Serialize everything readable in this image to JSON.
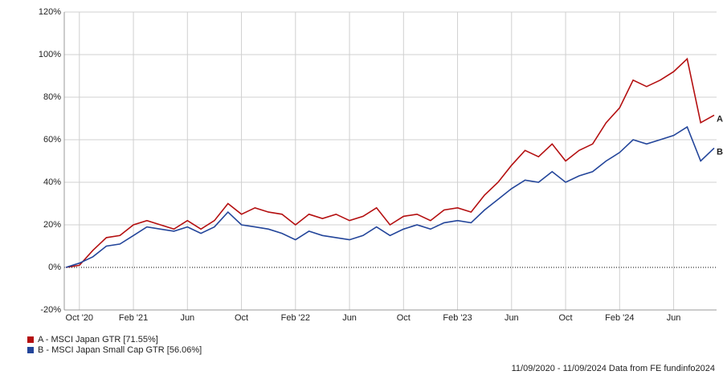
{
  "chart_data": {
    "type": "line",
    "categories": [
      null,
      "Oct '20",
      null,
      null,
      null,
      "Feb '21",
      null,
      null,
      null,
      "Jun",
      null,
      null,
      null,
      "Oct",
      null,
      null,
      null,
      "Feb '22",
      null,
      null,
      null,
      "Jun",
      null,
      null,
      null,
      "Oct",
      null,
      null,
      null,
      "Feb '23",
      null,
      null,
      null,
      "Jun",
      null,
      null,
      null,
      "Oct",
      null,
      null,
      null,
      "Feb '24",
      null,
      null,
      null,
      "Jun",
      null,
      null,
      null
    ],
    "series": [
      {
        "name": "A - MSCI Japan GTR [71.55%]",
        "label": "A",
        "color": "#b40f10",
        "values": [
          0,
          1,
          8,
          14,
          15,
          20,
          22,
          20,
          18,
          22,
          18,
          22,
          30,
          25,
          28,
          26,
          25,
          20,
          25,
          23,
          25,
          22,
          24,
          28,
          20,
          24,
          25,
          22,
          27,
          28,
          26,
          34,
          40,
          48,
          55,
          52,
          58,
          50,
          55,
          58,
          68,
          75,
          88,
          85,
          88,
          92,
          98,
          68,
          71.55
        ]
      },
      {
        "name": "B - MSCI Japan Small Cap GTR [56.06%]",
        "label": "B",
        "color": "#23459a",
        "values": [
          0,
          2,
          5,
          10,
          11,
          15,
          19,
          18,
          17,
          19,
          16,
          19,
          26,
          20,
          19,
          18,
          16,
          13,
          17,
          15,
          14,
          13,
          15,
          19,
          15,
          18,
          20,
          18,
          21,
          22,
          21,
          27,
          32,
          37,
          41,
          40,
          45,
          40,
          43,
          45,
          50,
          54,
          60,
          58,
          60,
          62,
          66,
          50,
          56.06
        ]
      }
    ],
    "ylim": [
      -20,
      120
    ],
    "yticks": [
      {
        "value": -20,
        "label": "-20%"
      },
      {
        "value": 0,
        "label": "0%"
      },
      {
        "value": 20,
        "label": "20%"
      },
      {
        "value": 40,
        "label": "40%"
      },
      {
        "value": 60,
        "label": "60%"
      },
      {
        "value": 80,
        "label": "80%"
      },
      {
        "value": 100,
        "label": "100%"
      },
      {
        "value": 120,
        "label": "120%"
      }
    ],
    "grid": true,
    "source": "11/09/2020 - 11/09/2024 Data from FE fundinfo2024"
  }
}
